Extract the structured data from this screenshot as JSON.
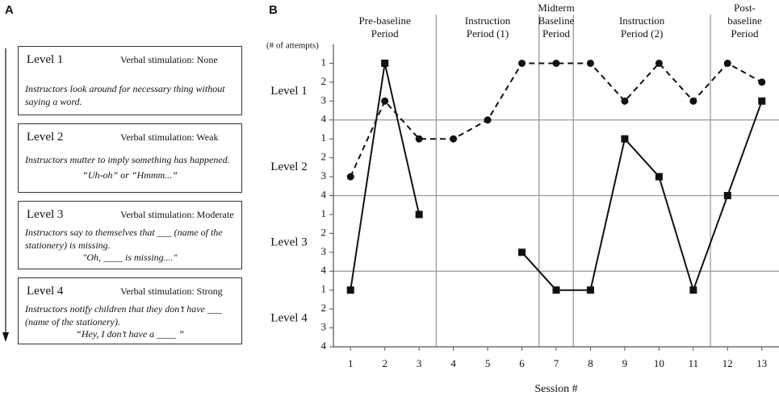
{
  "panel_a": {
    "label": "A",
    "boxes": [
      {
        "level": "Level 1",
        "stimulation": "Verbal stimulation: None",
        "description": "Instructors look around for necessary thing without saying a word."
      },
      {
        "level": "Level 2",
        "stimulation": "Verbal stimulation: Weak",
        "description": "Instructors mutter to imply something has happened.",
        "example": "“Uh-oh” or “Hmmm...”"
      },
      {
        "level": "Level 3",
        "stimulation": "Verbal stimulation: Moderate",
        "description": "Instructors say to themselves that ___ (name of the stationery) is missing.",
        "example": "\"Oh,  ____ is missing....\""
      },
      {
        "level": "Level 4",
        "stimulation": "Verbal stimulation: Strong",
        "description": "Instructors notify children that they don’t have ___ (name of the stationery).",
        "example": "“Hey, I don’t have a ____ ”"
      }
    ]
  },
  "chart_data": {
    "type": "line",
    "panel_label": "B",
    "y_label": "(# of attempts)",
    "x_label": "Session #",
    "y_groups": [
      "Level 1",
      "Level 2",
      "Level 3",
      "Level 4"
    ],
    "phases": [
      {
        "label": "Pre-baseline\nPeriod",
        "range": [
          0.5,
          3.5
        ]
      },
      {
        "label": "Instruction\nPeriod (1)",
        "range": [
          3.5,
          6.5
        ]
      },
      {
        "label": "Midterm\nBaseline\nPeriod",
        "range": [
          6.5,
          7.5
        ]
      },
      {
        "label": "Instruction\nPeriod (2)",
        "range": [
          7.5,
          11.5
        ]
      },
      {
        "label": "Post-baseline\nPeriod",
        "range": [
          11.5,
          13.5
        ]
      }
    ],
    "x": [
      1,
      2,
      3,
      4,
      5,
      6,
      7,
      8,
      9,
      10,
      11,
      12,
      13
    ],
    "xlim": [
      0.5,
      13.5
    ],
    "xticks": [
      1,
      2,
      3,
      4,
      5,
      6,
      7,
      8,
      9,
      10,
      11,
      12,
      13
    ],
    "ylim": [
      0,
      16
    ],
    "y_inverted": true,
    "yticks": [
      1,
      2,
      3,
      4,
      {
        "value": 5,
        "label": "1"
      },
      {
        "value": 6,
        "label": "2"
      },
      {
        "value": 7,
        "label": "3"
      },
      {
        "value": 8,
        "label": "4"
      },
      {
        "value": 9,
        "label": "1"
      },
      {
        "value": 10,
        "label": "2"
      },
      {
        "value": 11,
        "label": "3"
      },
      {
        "value": 12,
        "label": "4"
      },
      {
        "value": 13,
        "label": "1"
      },
      {
        "value": 14,
        "label": "2"
      },
      {
        "value": 15,
        "label": "3"
      },
      {
        "value": 16,
        "label": "4"
      }
    ],
    "grid_lines": [
      4,
      8,
      12
    ],
    "series": [
      {
        "color": "#111111",
        "dash": true,
        "marker": "circle",
        "values": [
          7,
          3,
          5,
          5,
          4,
          1,
          1,
          1,
          3,
          1,
          3,
          1,
          2
        ]
      },
      {
        "color": "#111111",
        "dash": false,
        "marker": "square",
        "values": [
          13,
          1,
          9,
          null,
          null,
          11,
          13,
          13,
          5,
          7,
          13,
          8,
          3
        ]
      }
    ]
  }
}
